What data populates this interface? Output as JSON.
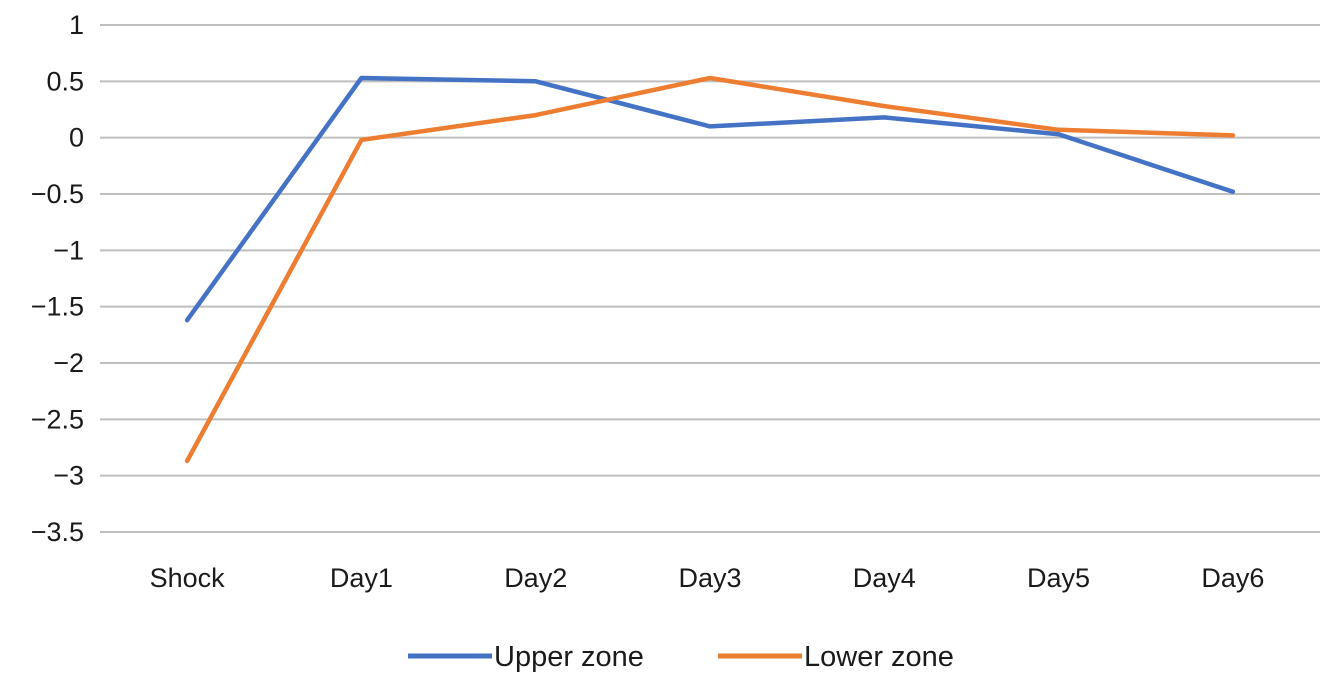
{
  "chart_data": {
    "type": "line",
    "title": "",
    "xlabel": "",
    "ylabel": "",
    "categories": [
      "Shock",
      "Day1",
      "Day2",
      "Day3",
      "Day4",
      "Day5",
      "Day6"
    ],
    "y_ticks": [
      "1",
      "0.5",
      "0",
      "−0.5",
      "−1",
      "−1.5",
      "−2",
      "−2.5",
      "−3",
      "−3.5"
    ],
    "ylim": [
      -3.5,
      1
    ],
    "grid": true,
    "legend_position": "bottom",
    "series": [
      {
        "name": "Upper zone",
        "color": "#4472C4",
        "values": [
          -1.62,
          0.53,
          0.5,
          0.1,
          0.18,
          0.03,
          -0.48
        ]
      },
      {
        "name": "Lower zone",
        "color": "#ED7D31",
        "values": [
          -2.87,
          -0.02,
          0.2,
          0.53,
          0.28,
          0.07,
          0.02
        ]
      }
    ]
  }
}
